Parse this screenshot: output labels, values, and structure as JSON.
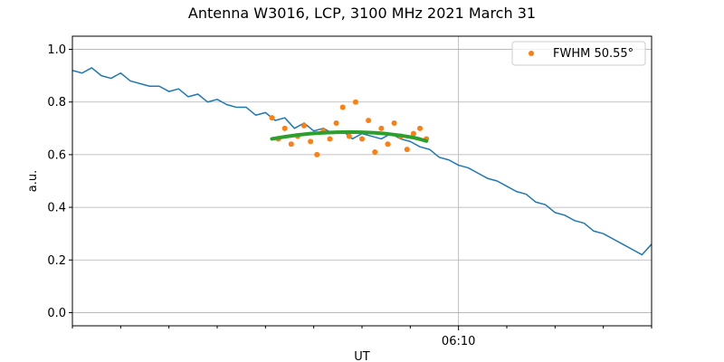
{
  "chart_data": {
    "type": "line",
    "title": "Antenna W3016, LCP, 3100 MHz 2021 March 31",
    "xlabel": "UT",
    "ylabel": "a.u.",
    "xlim": [
      0,
      360
    ],
    "ylim": [
      -0.05,
      1.05
    ],
    "y_ticks": [
      0.0,
      0.2,
      0.4,
      0.6,
      0.8,
      1.0
    ],
    "y_tick_labels": [
      "0.0",
      "0.2",
      "0.4",
      "0.6",
      "0.8",
      "1.0"
    ],
    "x_major_ticks": [
      {
        "x": 240,
        "label": "06:10"
      }
    ],
    "x_minor_ticks": [
      0,
      30,
      60,
      90,
      120,
      150,
      180,
      210,
      270,
      300,
      330,
      360
    ],
    "grid": true,
    "legend_position": "top-right",
    "colors": {
      "signal": "#1f77b4",
      "points": "#ff7f0e",
      "fit": "#2ca02c",
      "grid": "#b0b0b0"
    },
    "series": [
      {
        "style": "line",
        "x": [
          0,
          6,
          12,
          18,
          24,
          30,
          36,
          42,
          48,
          54,
          60,
          66,
          72,
          78,
          84,
          90,
          96,
          102,
          108,
          114,
          120,
          126,
          132,
          138,
          144,
          150,
          156,
          162,
          168,
          174,
          180,
          186,
          192,
          198,
          204,
          210,
          216,
          222,
          228,
          234,
          240,
          246,
          252,
          258,
          264,
          270,
          276,
          282,
          288,
          294,
          300,
          306,
          312,
          318,
          324,
          330,
          336,
          342,
          348,
          354,
          360
        ],
        "y": [
          0.92,
          0.91,
          0.93,
          0.9,
          0.89,
          0.91,
          0.88,
          0.87,
          0.86,
          0.86,
          0.84,
          0.85,
          0.82,
          0.83,
          0.8,
          0.81,
          0.79,
          0.78,
          0.78,
          0.75,
          0.76,
          0.73,
          0.74,
          0.7,
          0.72,
          0.69,
          0.7,
          0.68,
          0.69,
          0.66,
          0.68,
          0.67,
          0.66,
          0.68,
          0.66,
          0.65,
          0.63,
          0.62,
          0.59,
          0.58,
          0.56,
          0.55,
          0.53,
          0.51,
          0.5,
          0.48,
          0.46,
          0.45,
          0.42,
          0.41,
          0.38,
          0.37,
          0.35,
          0.34,
          0.31,
          0.3,
          0.28,
          0.26,
          0.24,
          0.22,
          0.26
        ]
      },
      {
        "name": "FWHM 50.55°",
        "style": "points",
        "x": [
          124,
          128,
          132,
          136,
          140,
          144,
          148,
          152,
          156,
          160,
          164,
          168,
          172,
          176,
          180,
          184,
          188,
          192,
          196,
          200,
          204,
          208,
          212,
          216,
          220
        ],
        "y": [
          0.74,
          0.66,
          0.7,
          0.64,
          0.67,
          0.71,
          0.65,
          0.6,
          0.69,
          0.66,
          0.72,
          0.78,
          0.67,
          0.8,
          0.66,
          0.73,
          0.61,
          0.7,
          0.64,
          0.72,
          0.67,
          0.62,
          0.68,
          0.7,
          0.66
        ]
      },
      {
        "style": "line",
        "x": [
          124,
          132,
          140,
          148,
          156,
          164,
          172,
          180,
          188,
          196,
          204,
          212,
          216,
          220
        ],
        "y": [
          0.66,
          0.668,
          0.675,
          0.68,
          0.683,
          0.685,
          0.686,
          0.685,
          0.683,
          0.679,
          0.673,
          0.665,
          0.659,
          0.652
        ]
      }
    ]
  }
}
